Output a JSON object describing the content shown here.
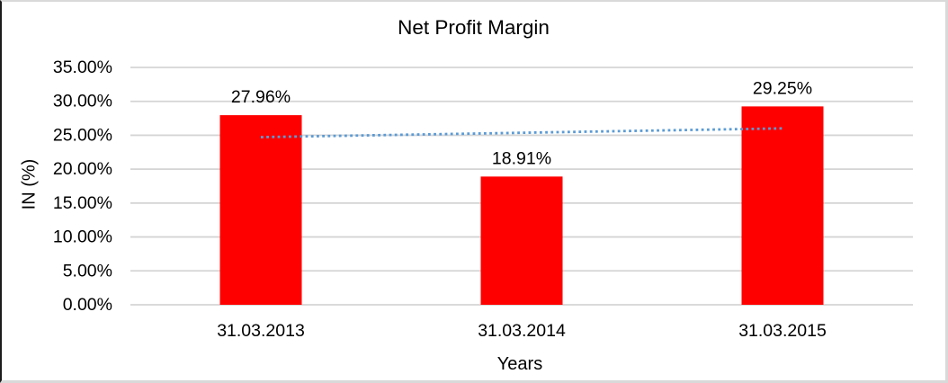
{
  "frame": {
    "background": "#ffffff",
    "border_color": "#d9d9d9",
    "left_border_color": "#1c1c1c"
  },
  "chart_data": {
    "type": "bar",
    "title": "Net Profit Margin",
    "xlabel": "Years",
    "ylabel": "IN (%)",
    "categories": [
      "31.03.2013",
      "31.03.2014",
      "31.03.2015"
    ],
    "values": [
      27.96,
      18.91,
      29.25
    ],
    "value_labels": [
      "27.96%",
      "18.91%",
      "29.25%"
    ],
    "ylim": [
      0,
      35
    ],
    "ytick_values": [
      0,
      5,
      10,
      15,
      20,
      25,
      30,
      35
    ],
    "ytick_labels": [
      "0.00%",
      "5.00%",
      "10.00%",
      "15.00%",
      "20.00%",
      "25.00%",
      "30.00%",
      "35.00%"
    ],
    "grid": true,
    "legend": "none",
    "bar_color": "#ff0000",
    "gridline_color": "#d4d4d4",
    "text_color": "#000000",
    "trendline": {
      "type": "linear",
      "style": "dotted",
      "color": "#5b9bd5",
      "start_value": 24.72,
      "end_value": 26.01
    }
  }
}
